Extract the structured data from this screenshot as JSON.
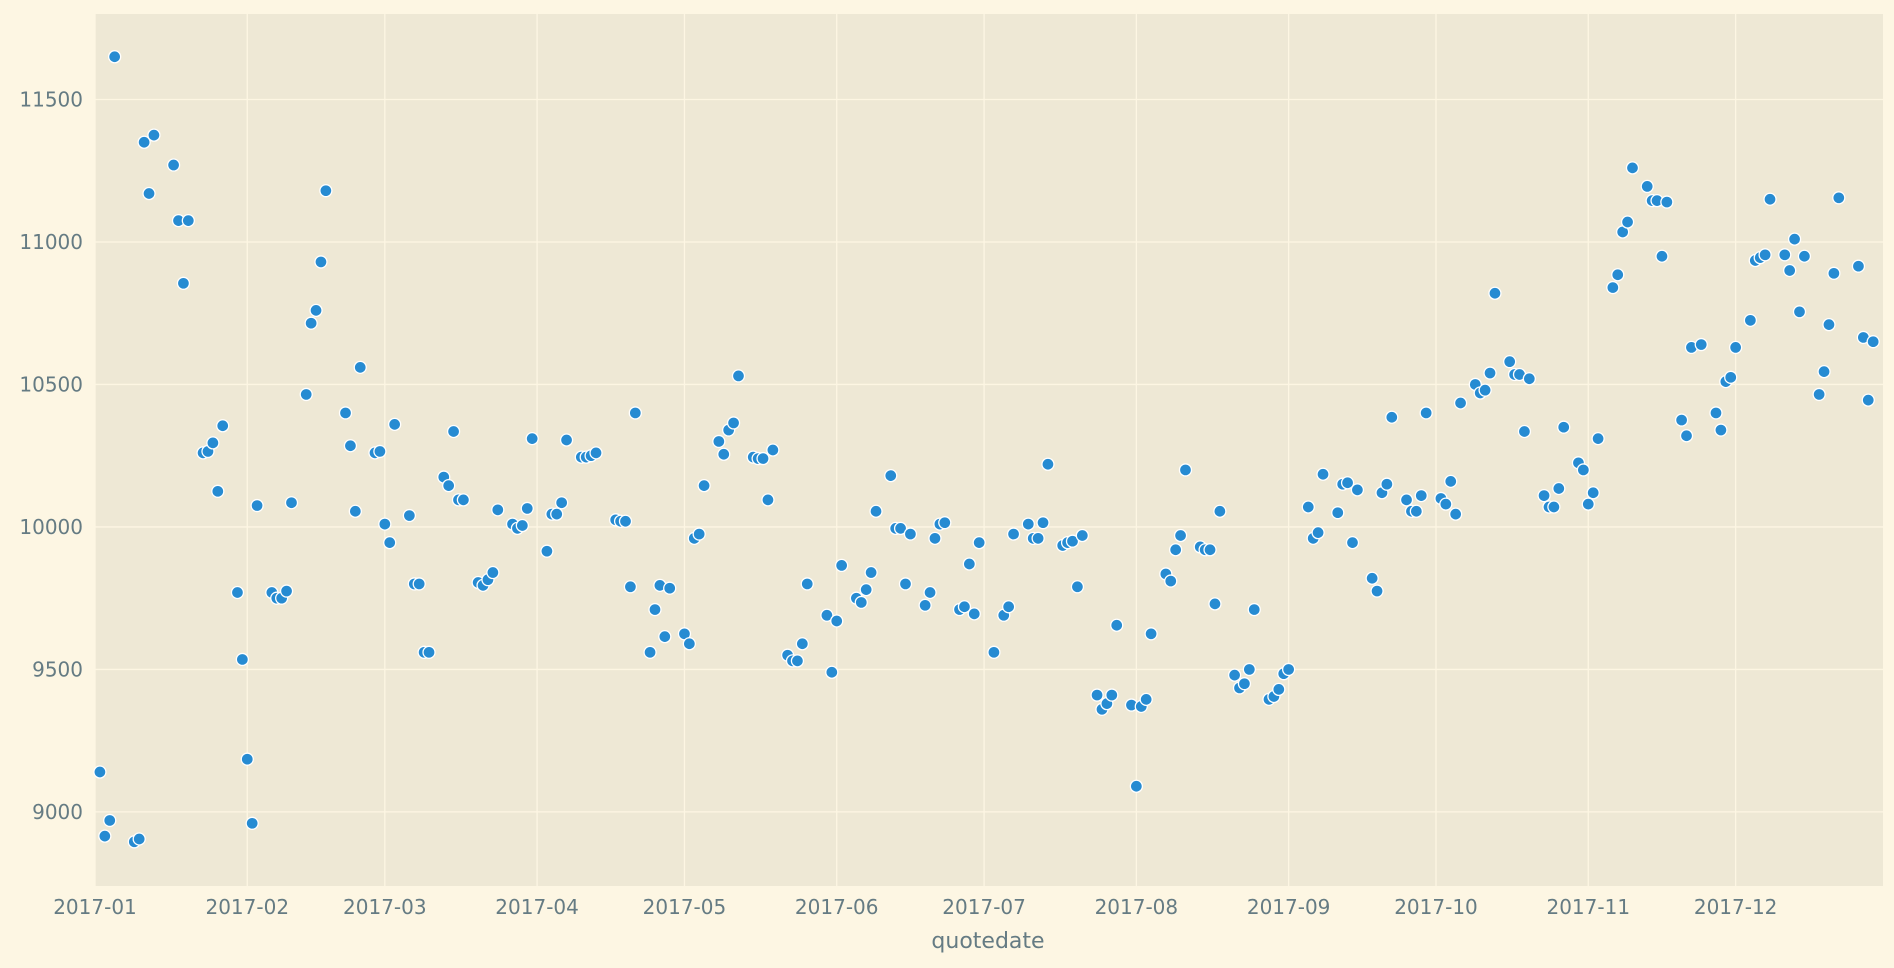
{
  "chart_data": {
    "type": "scatter",
    "title": "",
    "xlabel": "quotedate",
    "ylabel": "",
    "x_tick_labels": [
      "2017-01",
      "2017-02",
      "2017-03",
      "2017-04",
      "2017-05",
      "2017-06",
      "2017-07",
      "2017-08",
      "2017-09",
      "2017-10",
      "2017-11",
      "2017-12"
    ],
    "y_ticks": [
      9000,
      9500,
      10000,
      10500,
      11000,
      11500
    ],
    "xlim": [
      "2017-01-01",
      "2017-12-31"
    ],
    "ylim": [
      8740,
      11800
    ],
    "grid": true,
    "colors": {
      "background": "#fdf6e3",
      "plot_area": "#eee8d5",
      "grid": "#fdf6e3",
      "marker": "#268bd2",
      "marker_edge": "#ffffff",
      "text": "#657b83"
    },
    "series": [
      {
        "points": [
          [
            "2017-01-02",
            9140
          ],
          [
            "2017-01-03",
            8915
          ],
          [
            "2017-01-04",
            8970
          ],
          [
            "2017-01-05",
            11650
          ],
          [
            "2017-01-09",
            8895
          ],
          [
            "2017-01-10",
            8905
          ],
          [
            "2017-01-11",
            11350
          ],
          [
            "2017-01-12",
            11170
          ],
          [
            "2017-01-13",
            11375
          ],
          [
            "2017-01-17",
            11270
          ],
          [
            "2017-01-18",
            11075
          ],
          [
            "2017-01-19",
            10855
          ],
          [
            "2017-01-20",
            11075
          ],
          [
            "2017-01-23",
            10260
          ],
          [
            "2017-01-24",
            10265
          ],
          [
            "2017-01-25",
            10295
          ],
          [
            "2017-01-26",
            10125
          ],
          [
            "2017-01-27",
            10355
          ],
          [
            "2017-01-30",
            9770
          ],
          [
            "2017-01-31",
            9535
          ],
          [
            "2017-02-01",
            9185
          ],
          [
            "2017-02-02",
            8960
          ],
          [
            "2017-02-03",
            10075
          ],
          [
            "2017-02-06",
            9770
          ],
          [
            "2017-02-07",
            9750
          ],
          [
            "2017-02-08",
            9750
          ],
          [
            "2017-02-09",
            9775
          ],
          [
            "2017-02-10",
            10085
          ],
          [
            "2017-02-13",
            10465
          ],
          [
            "2017-02-14",
            10715
          ],
          [
            "2017-02-15",
            10760
          ],
          [
            "2017-02-16",
            10930
          ],
          [
            "2017-02-17",
            11180
          ],
          [
            "2017-02-21",
            10400
          ],
          [
            "2017-02-22",
            10285
          ],
          [
            "2017-02-23",
            10055
          ],
          [
            "2017-02-24",
            10560
          ],
          [
            "2017-02-27",
            10260
          ],
          [
            "2017-02-28",
            10265
          ],
          [
            "2017-03-01",
            10010
          ],
          [
            "2017-03-02",
            9945
          ],
          [
            "2017-03-03",
            10360
          ],
          [
            "2017-03-06",
            10040
          ],
          [
            "2017-03-07",
            9800
          ],
          [
            "2017-03-08",
            9800
          ],
          [
            "2017-03-09",
            9560
          ],
          [
            "2017-03-10",
            9560
          ],
          [
            "2017-03-13",
            10175
          ],
          [
            "2017-03-14",
            10145
          ],
          [
            "2017-03-15",
            10335
          ],
          [
            "2017-03-16",
            10095
          ],
          [
            "2017-03-17",
            10095
          ],
          [
            "2017-03-20",
            9805
          ],
          [
            "2017-03-21",
            9795
          ],
          [
            "2017-03-22",
            9815
          ],
          [
            "2017-03-23",
            9840
          ],
          [
            "2017-03-24",
            10060
          ],
          [
            "2017-03-27",
            10010
          ],
          [
            "2017-03-28",
            9995
          ],
          [
            "2017-03-29",
            10005
          ],
          [
            "2017-03-30",
            10065
          ],
          [
            "2017-03-31",
            10310
          ],
          [
            "2017-04-03",
            9915
          ],
          [
            "2017-04-04",
            10045
          ],
          [
            "2017-04-05",
            10045
          ],
          [
            "2017-04-06",
            10085
          ],
          [
            "2017-04-07",
            10305
          ],
          [
            "2017-04-10",
            10245
          ],
          [
            "2017-04-11",
            10245
          ],
          [
            "2017-04-12",
            10250
          ],
          [
            "2017-04-13",
            10260
          ],
          [
            "2017-04-17",
            10025
          ],
          [
            "2017-04-18",
            10020
          ],
          [
            "2017-04-19",
            10020
          ],
          [
            "2017-04-20",
            9790
          ],
          [
            "2017-04-21",
            10400
          ],
          [
            "2017-04-24",
            9560
          ],
          [
            "2017-04-25",
            9710
          ],
          [
            "2017-04-26",
            9795
          ],
          [
            "2017-04-27",
            9615
          ],
          [
            "2017-04-28",
            9785
          ],
          [
            "2017-05-01",
            9625
          ],
          [
            "2017-05-02",
            9590
          ],
          [
            "2017-05-03",
            9960
          ],
          [
            "2017-05-04",
            9975
          ],
          [
            "2017-05-05",
            10145
          ],
          [
            "2017-05-08",
            10300
          ],
          [
            "2017-05-09",
            10255
          ],
          [
            "2017-05-10",
            10340
          ],
          [
            "2017-05-11",
            10365
          ],
          [
            "2017-05-12",
            10530
          ],
          [
            "2017-05-15",
            10245
          ],
          [
            "2017-05-16",
            10240
          ],
          [
            "2017-05-17",
            10240
          ],
          [
            "2017-05-18",
            10095
          ],
          [
            "2017-05-19",
            10270
          ],
          [
            "2017-05-22",
            9550
          ],
          [
            "2017-05-23",
            9530
          ],
          [
            "2017-05-24",
            9530
          ],
          [
            "2017-05-25",
            9590
          ],
          [
            "2017-05-26",
            9800
          ],
          [
            "2017-05-30",
            9690
          ],
          [
            "2017-05-31",
            9490
          ],
          [
            "2017-06-01",
            9670
          ],
          [
            "2017-06-02",
            9865
          ],
          [
            "2017-06-05",
            9750
          ],
          [
            "2017-06-06",
            9735
          ],
          [
            "2017-06-07",
            9780
          ],
          [
            "2017-06-08",
            9840
          ],
          [
            "2017-06-09",
            10055
          ],
          [
            "2017-06-12",
            10180
          ],
          [
            "2017-06-13",
            9995
          ],
          [
            "2017-06-14",
            9995
          ],
          [
            "2017-06-15",
            9800
          ],
          [
            "2017-06-16",
            9975
          ],
          [
            "2017-06-19",
            9725
          ],
          [
            "2017-06-20",
            9770
          ],
          [
            "2017-06-21",
            9960
          ],
          [
            "2017-06-22",
            10010
          ],
          [
            "2017-06-23",
            10015
          ],
          [
            "2017-06-26",
            9710
          ],
          [
            "2017-06-27",
            9720
          ],
          [
            "2017-06-28",
            9870
          ],
          [
            "2017-06-29",
            9695
          ],
          [
            "2017-06-30",
            9945
          ],
          [
            "2017-07-03",
            9560
          ],
          [
            "2017-07-05",
            9690
          ],
          [
            "2017-07-06",
            9720
          ],
          [
            "2017-07-07",
            9975
          ],
          [
            "2017-07-10",
            10010
          ],
          [
            "2017-07-11",
            9960
          ],
          [
            "2017-07-12",
            9960
          ],
          [
            "2017-07-13",
            10015
          ],
          [
            "2017-07-14",
            10220
          ],
          [
            "2017-07-17",
            9935
          ],
          [
            "2017-07-18",
            9945
          ],
          [
            "2017-07-19",
            9950
          ],
          [
            "2017-07-20",
            9790
          ],
          [
            "2017-07-21",
            9970
          ],
          [
            "2017-07-24",
            9410
          ],
          [
            "2017-07-25",
            9360
          ],
          [
            "2017-07-26",
            9380
          ],
          [
            "2017-07-27",
            9410
          ],
          [
            "2017-07-28",
            9655
          ],
          [
            "2017-07-31",
            9375
          ],
          [
            "2017-08-01",
            9090
          ],
          [
            "2017-08-02",
            9370
          ],
          [
            "2017-08-03",
            9395
          ],
          [
            "2017-08-04",
            9625
          ],
          [
            "2017-08-07",
            9835
          ],
          [
            "2017-08-08",
            9810
          ],
          [
            "2017-08-09",
            9920
          ],
          [
            "2017-08-10",
            9970
          ],
          [
            "2017-08-11",
            10200
          ],
          [
            "2017-08-14",
            9930
          ],
          [
            "2017-08-15",
            9920
          ],
          [
            "2017-08-16",
            9920
          ],
          [
            "2017-08-17",
            9730
          ],
          [
            "2017-08-18",
            10055
          ],
          [
            "2017-08-21",
            9480
          ],
          [
            "2017-08-22",
            9435
          ],
          [
            "2017-08-23",
            9450
          ],
          [
            "2017-08-24",
            9500
          ],
          [
            "2017-08-25",
            9710
          ],
          [
            "2017-08-28",
            9395
          ],
          [
            "2017-08-29",
            9405
          ],
          [
            "2017-08-30",
            9430
          ],
          [
            "2017-08-31",
            9485
          ],
          [
            "2017-09-01",
            9500
          ],
          [
            "2017-09-05",
            10070
          ],
          [
            "2017-09-06",
            9960
          ],
          [
            "2017-09-07",
            9980
          ],
          [
            "2017-09-08",
            10185
          ],
          [
            "2017-09-11",
            10050
          ],
          [
            "2017-09-12",
            10150
          ],
          [
            "2017-09-13",
            10155
          ],
          [
            "2017-09-14",
            9945
          ],
          [
            "2017-09-15",
            10130
          ],
          [
            "2017-09-18",
            9820
          ],
          [
            "2017-09-19",
            9775
          ],
          [
            "2017-09-20",
            10120
          ],
          [
            "2017-09-21",
            10150
          ],
          [
            "2017-09-22",
            10385
          ],
          [
            "2017-09-25",
            10095
          ],
          [
            "2017-09-26",
            10055
          ],
          [
            "2017-09-27",
            10055
          ],
          [
            "2017-09-28",
            10110
          ],
          [
            "2017-09-29",
            10400
          ],
          [
            "2017-10-02",
            10100
          ],
          [
            "2017-10-03",
            10080
          ],
          [
            "2017-10-04",
            10160
          ],
          [
            "2017-10-05",
            10045
          ],
          [
            "2017-10-06",
            10435
          ],
          [
            "2017-10-09",
            10500
          ],
          [
            "2017-10-10",
            10470
          ],
          [
            "2017-10-11",
            10480
          ],
          [
            "2017-10-12",
            10540
          ],
          [
            "2017-10-13",
            10820
          ],
          [
            "2017-10-16",
            10580
          ],
          [
            "2017-10-17",
            10535
          ],
          [
            "2017-10-18",
            10535
          ],
          [
            "2017-10-19",
            10335
          ],
          [
            "2017-10-20",
            10520
          ],
          [
            "2017-10-23",
            10110
          ],
          [
            "2017-10-24",
            10070
          ],
          [
            "2017-10-25",
            10070
          ],
          [
            "2017-10-26",
            10135
          ],
          [
            "2017-10-27",
            10350
          ],
          [
            "2017-10-30",
            10225
          ],
          [
            "2017-10-31",
            10200
          ],
          [
            "2017-11-01",
            10080
          ],
          [
            "2017-11-02",
            10120
          ],
          [
            "2017-11-03",
            10310
          ],
          [
            "2017-11-06",
            10840
          ],
          [
            "2017-11-07",
            10885
          ],
          [
            "2017-11-08",
            11035
          ],
          [
            "2017-11-09",
            11070
          ],
          [
            "2017-11-10",
            11260
          ],
          [
            "2017-11-13",
            11195
          ],
          [
            "2017-11-14",
            11145
          ],
          [
            "2017-11-15",
            11145
          ],
          [
            "2017-11-16",
            10950
          ],
          [
            "2017-11-17",
            11140
          ],
          [
            "2017-11-20",
            10375
          ],
          [
            "2017-11-21",
            10320
          ],
          [
            "2017-11-22",
            10630
          ],
          [
            "2017-11-24",
            10640
          ],
          [
            "2017-11-27",
            10400
          ],
          [
            "2017-11-28",
            10340
          ],
          [
            "2017-11-29",
            10510
          ],
          [
            "2017-11-30",
            10525
          ],
          [
            "2017-12-01",
            10630
          ],
          [
            "2017-12-04",
            10725
          ],
          [
            "2017-12-05",
            10935
          ],
          [
            "2017-12-06",
            10945
          ],
          [
            "2017-12-07",
            10955
          ],
          [
            "2017-12-08",
            11150
          ],
          [
            "2017-12-11",
            10955
          ],
          [
            "2017-12-12",
            10900
          ],
          [
            "2017-12-13",
            11010
          ],
          [
            "2017-12-14",
            10755
          ],
          [
            "2017-12-15",
            10950
          ],
          [
            "2017-12-18",
            10465
          ],
          [
            "2017-12-19",
            10545
          ],
          [
            "2017-12-20",
            10710
          ],
          [
            "2017-12-21",
            10890
          ],
          [
            "2017-12-22",
            11155
          ],
          [
            "2017-12-26",
            10915
          ],
          [
            "2017-12-27",
            10665
          ],
          [
            "2017-12-28",
            10445
          ],
          [
            "2017-12-29",
            10650
          ]
        ]
      }
    ]
  }
}
